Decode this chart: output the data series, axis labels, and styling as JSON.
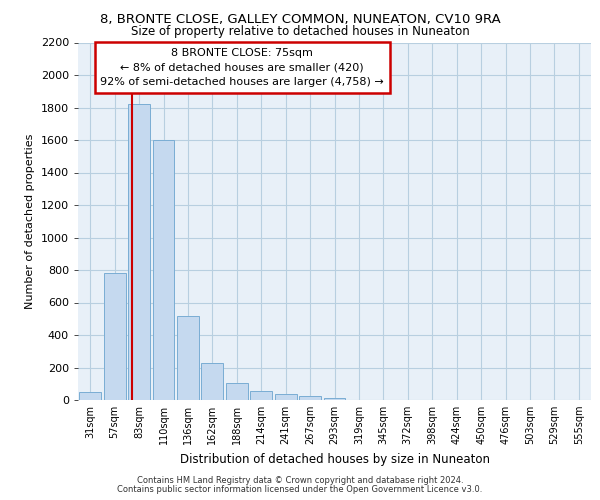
{
  "title1": "8, BRONTE CLOSE, GALLEY COMMON, NUNEATON, CV10 9RA",
  "title2": "Size of property relative to detached houses in Nuneaton",
  "xlabel": "Distribution of detached houses by size in Nuneaton",
  "ylabel": "Number of detached properties",
  "categories": [
    "31sqm",
    "57sqm",
    "83sqm",
    "110sqm",
    "136sqm",
    "162sqm",
    "188sqm",
    "214sqm",
    "241sqm",
    "267sqm",
    "293sqm",
    "319sqm",
    "345sqm",
    "372sqm",
    "398sqm",
    "424sqm",
    "450sqm",
    "476sqm",
    "503sqm",
    "529sqm",
    "555sqm"
  ],
  "values": [
    50,
    780,
    1820,
    1600,
    520,
    230,
    105,
    55,
    40,
    25,
    15,
    0,
    0,
    0,
    0,
    0,
    0,
    0,
    0,
    0,
    0
  ],
  "bar_color": "#c5d9ef",
  "bar_edge_color": "#7aadd4",
  "grid_color": "#b8cfe0",
  "annotation_border_color": "#cc0000",
  "vline_color": "#cc0000",
  "vline_x": 1.72,
  "annotation_text_line1": "8 BRONTE CLOSE: 75sqm",
  "annotation_text_line2": "← 8% of detached houses are smaller (420)",
  "annotation_text_line3": "92% of semi-detached houses are larger (4,758) →",
  "ylim": [
    0,
    2200
  ],
  "yticks": [
    0,
    200,
    400,
    600,
    800,
    1000,
    1200,
    1400,
    1600,
    1800,
    2000,
    2200
  ],
  "footer1": "Contains HM Land Registry data © Crown copyright and database right 2024.",
  "footer2": "Contains public sector information licensed under the Open Government Licence v3.0.",
  "bg_color": "#ffffff",
  "plot_bg_color": "#e8f0f8"
}
